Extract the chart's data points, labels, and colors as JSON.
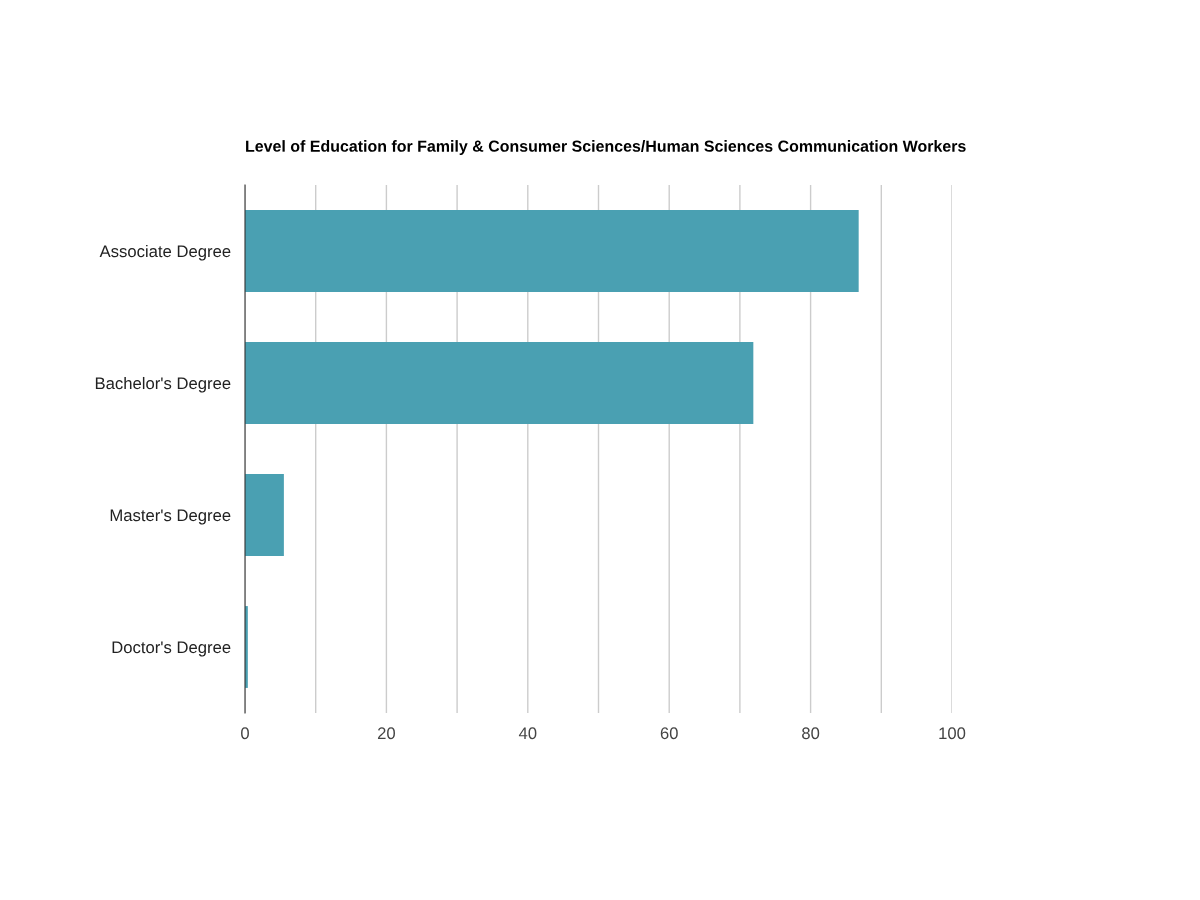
{
  "chart_data": {
    "type": "bar",
    "orientation": "horizontal",
    "title": "Level of Education for Family & Consumer Sciences/Human Sciences Communication Workers",
    "categories": [
      "Associate Degree",
      "Bachelor's Degree",
      "Master's Degree",
      "Doctor's Degree"
    ],
    "values": [
      86.8,
      71.9,
      5.5,
      0.4
    ],
    "color": "#4aa0b2",
    "xlim": [
      0,
      100
    ],
    "xticks": [
      0,
      {
        "value": 10,
        "label": null
      },
      20,
      {
        "value": 30,
        "label": null
      },
      40,
      {
        "value": 50,
        "label": null
      },
      60,
      {
        "value": 70,
        "label": null
      },
      80,
      {
        "value": 90,
        "label": null
      },
      100
    ],
    "grid": "x",
    "legend": false
  }
}
